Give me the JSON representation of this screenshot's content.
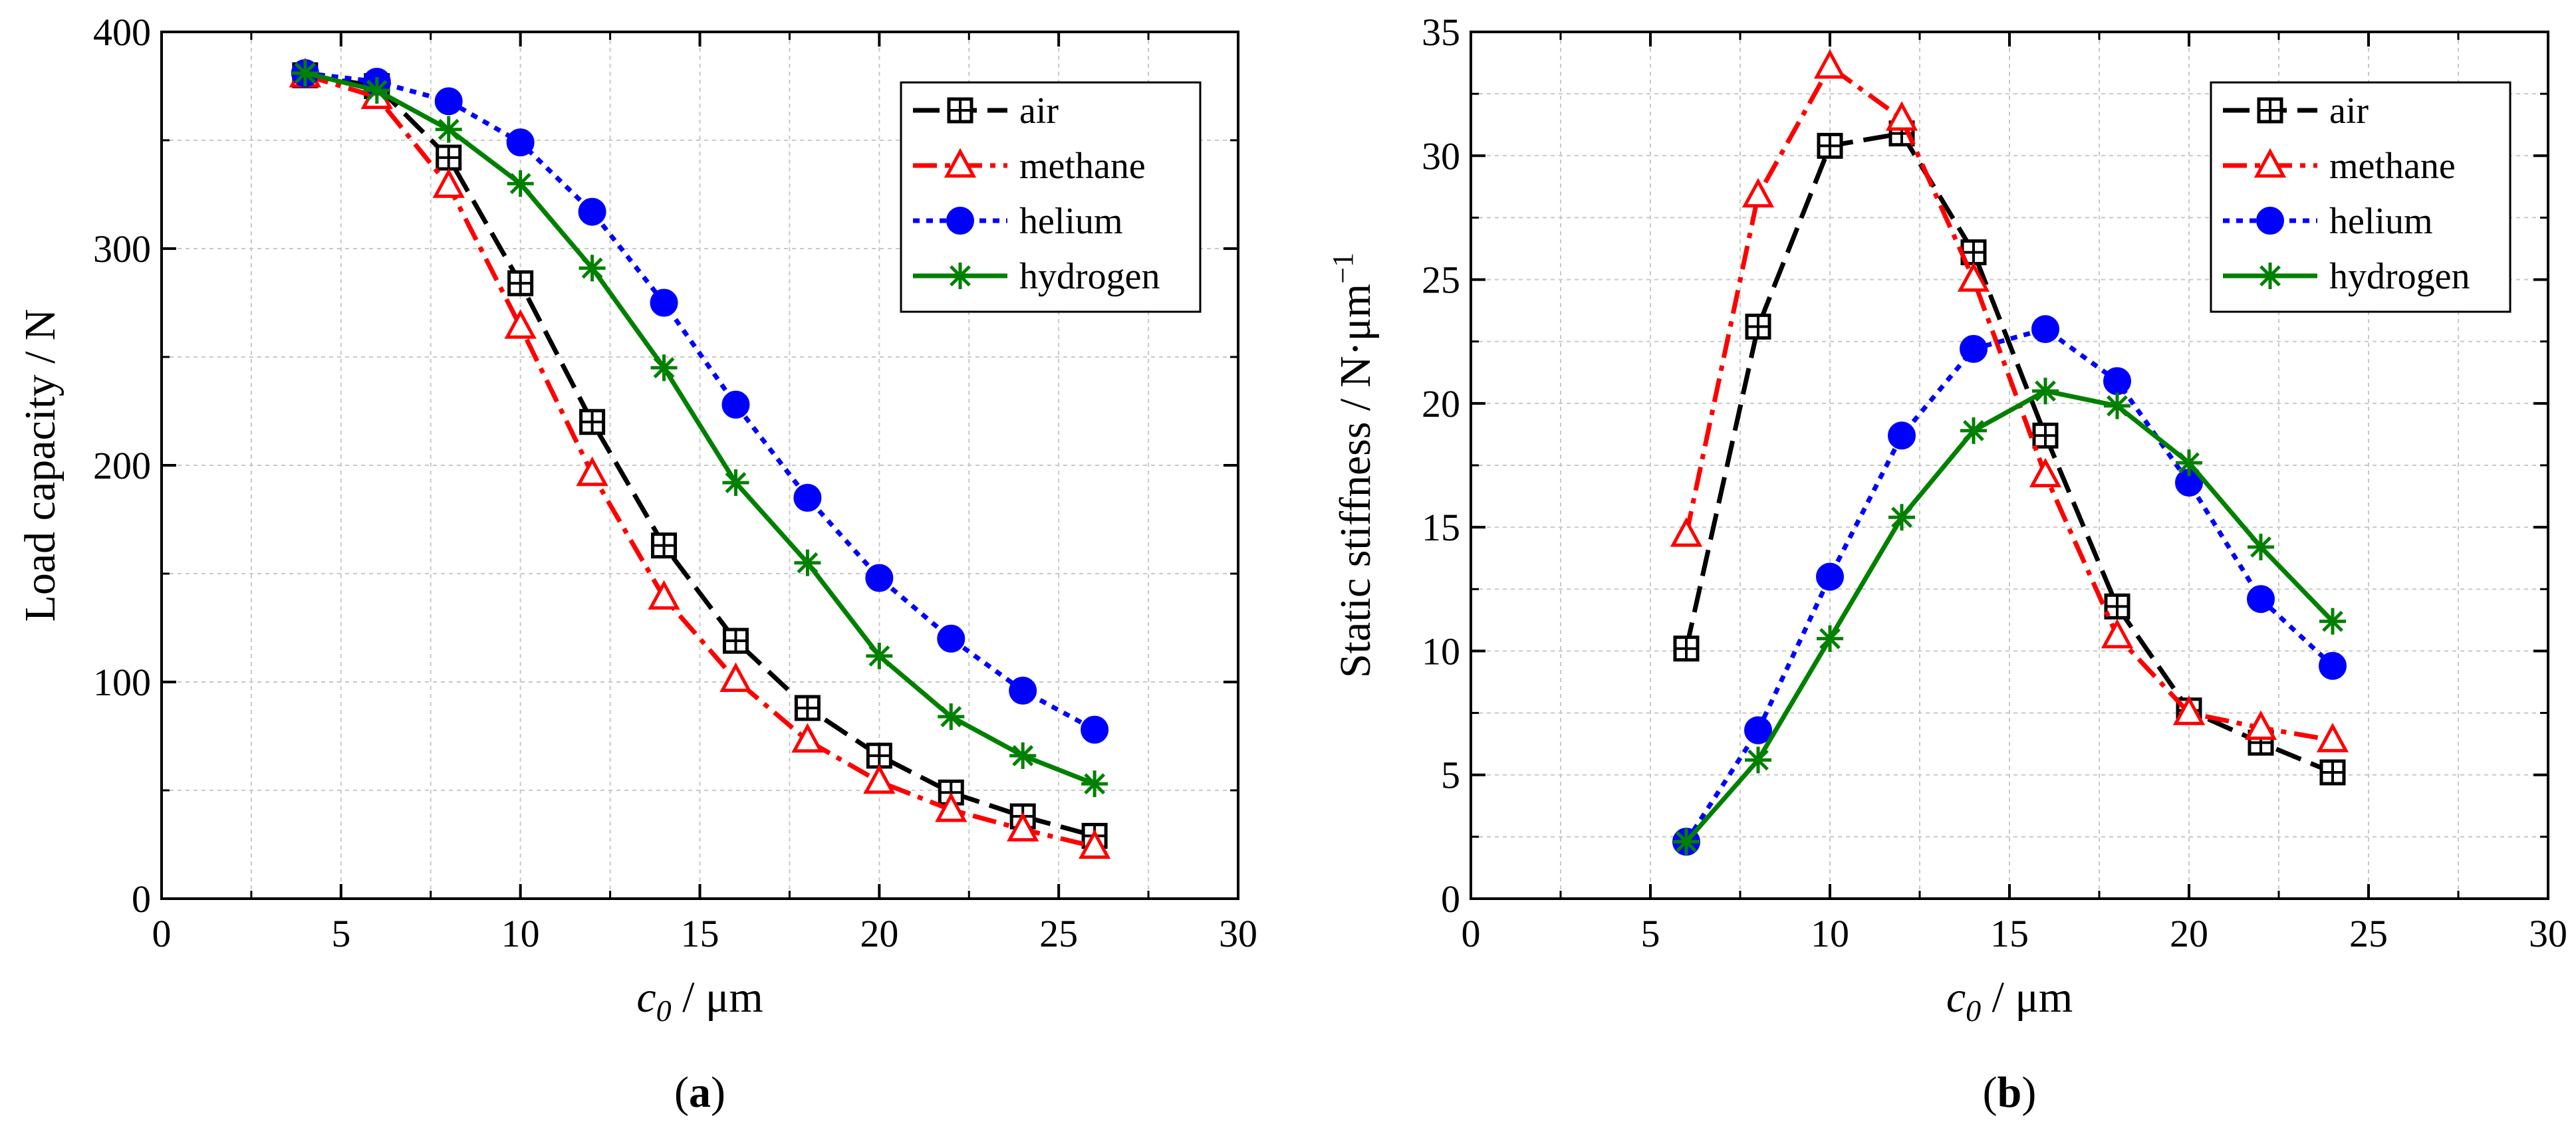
{
  "chart_data": [
    {
      "panel": "(a)",
      "panel_letter": "a",
      "type": "line",
      "title": "",
      "xlabel_var": "c",
      "xlabel_sub": "0",
      "xlabel_unit": " / μm",
      "ylabel": "Load capacity / N",
      "xlim": [
        0,
        30
      ],
      "ylim": [
        0,
        400
      ],
      "xticks": [
        0,
        5,
        10,
        15,
        20,
        25,
        30
      ],
      "yticks": [
        0,
        100,
        200,
        300,
        400
      ],
      "grid": true,
      "legend_position": "top-right",
      "series": [
        {
          "name": "air",
          "color": "#000000",
          "marker": "square-plus",
          "dash": "dash",
          "x": [
            4,
            6,
            8,
            10,
            12,
            14,
            16,
            18,
            20,
            22,
            24,
            26
          ],
          "y": [
            380,
            375,
            342,
            284,
            220,
            163,
            119,
            88,
            66,
            49,
            38,
            29
          ]
        },
        {
          "name": "methane",
          "color": "#ff0000",
          "marker": "triangle",
          "dash": "dashdot",
          "x": [
            4,
            6,
            8,
            10,
            12,
            14,
            16,
            18,
            20,
            22,
            24,
            26
          ],
          "y": [
            380,
            370,
            329,
            264,
            196,
            139,
            101,
            73,
            54,
            41,
            32,
            24
          ]
        },
        {
          "name": "helium",
          "color": "#0000ff",
          "marker": "circle",
          "dash": "dot",
          "x": [
            4,
            6,
            8,
            10,
            12,
            14,
            16,
            18,
            20,
            22,
            24,
            26
          ],
          "y": [
            381,
            377,
            368,
            349,
            317,
            275,
            228,
            185,
            148,
            120,
            96,
            78
          ]
        },
        {
          "name": "hydrogen",
          "color": "#008000",
          "marker": "star",
          "dash": "solid",
          "x": [
            4,
            6,
            8,
            10,
            12,
            14,
            16,
            18,
            20,
            22,
            24,
            26
          ],
          "y": [
            381,
            373,
            355,
            330,
            291,
            245,
            192,
            155,
            112,
            84,
            66,
            53
          ]
        }
      ]
    },
    {
      "panel": "(b)",
      "panel_letter": "b",
      "type": "line",
      "title": "",
      "xlabel_var": "c",
      "xlabel_sub": "0",
      "xlabel_unit": " / μm",
      "ylabel": "Static stiffness / N·μm",
      "ylabel_sup": "−1",
      "xlim": [
        0,
        30
      ],
      "ylim": [
        0,
        35
      ],
      "xticks": [
        0,
        5,
        10,
        15,
        20,
        25,
        30
      ],
      "yticks": [
        0,
        5,
        10,
        15,
        20,
        25,
        30,
        35
      ],
      "grid": true,
      "legend_position": "top-right",
      "series": [
        {
          "name": "air",
          "color": "#000000",
          "marker": "square-plus",
          "dash": "dash",
          "x": [
            6,
            8,
            10,
            12,
            14,
            16,
            18,
            20,
            22,
            24
          ],
          "y": [
            10.1,
            23.1,
            30.4,
            30.9,
            26.1,
            18.7,
            11.8,
            7.6,
            6.3,
            5.1
          ]
        },
        {
          "name": "methane",
          "color": "#ff0000",
          "marker": "triangle",
          "dash": "dashdot",
          "x": [
            6,
            8,
            10,
            12,
            14,
            16,
            18,
            20,
            22,
            24
          ],
          "y": [
            14.7,
            28.4,
            33.6,
            31.5,
            25.0,
            17.1,
            10.6,
            7.5,
            6.9,
            6.4
          ]
        },
        {
          "name": "helium",
          "color": "#0000ff",
          "marker": "circle",
          "dash": "dot",
          "x": [
            6,
            8,
            10,
            12,
            14,
            16,
            18,
            20,
            22,
            24
          ],
          "y": [
            2.3,
            6.8,
            13.0,
            18.7,
            22.2,
            23.0,
            20.9,
            16.8,
            12.1,
            9.4
          ]
        },
        {
          "name": "hydrogen",
          "color": "#008000",
          "marker": "star",
          "dash": "solid",
          "x": [
            6,
            8,
            10,
            12,
            14,
            16,
            18,
            20,
            22,
            24
          ],
          "y": [
            2.3,
            5.6,
            10.5,
            15.4,
            18.9,
            20.5,
            19.9,
            17.6,
            14.2,
            11.2
          ]
        }
      ]
    }
  ]
}
